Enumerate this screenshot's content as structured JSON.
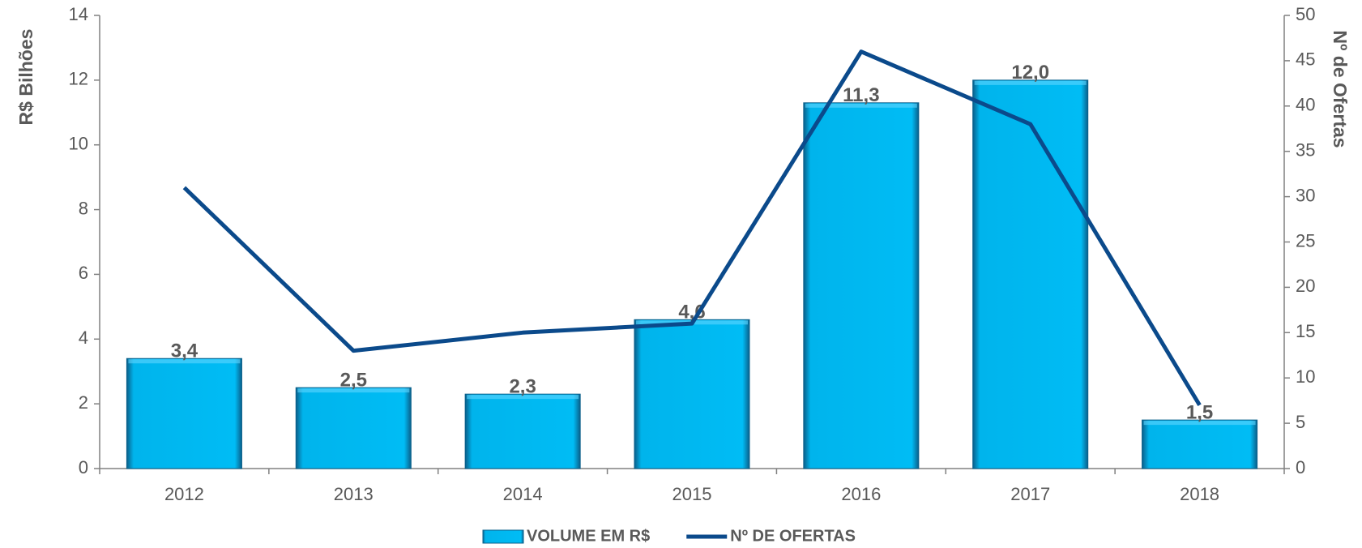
{
  "chart_data": {
    "type": "bar",
    "categories": [
      "2012",
      "2013",
      "2014",
      "2015",
      "2016",
      "2017",
      "2018"
    ],
    "series": [
      {
        "name": "VOLUME EM R$",
        "type": "bar",
        "color": "#00bcf5",
        "values": [
          3.4,
          2.5,
          2.3,
          4.6,
          11.3,
          12.0,
          1.5
        ],
        "value_labels": [
          "3,4",
          "2,5",
          "2,3",
          "4,6",
          "11,3",
          "12,0",
          "1,5"
        ]
      },
      {
        "name": "Nº DE OFERTAS",
        "type": "line",
        "axis": "y2",
        "color": "#0b4a8b",
        "values": [
          31,
          13,
          15,
          16,
          46,
          38,
          7
        ]
      }
    ],
    "ylabel": "R$ Bilhões",
    "y2label": "Nº de Ofertas",
    "ylim": [
      0,
      14
    ],
    "yticks": [
      0,
      2,
      4,
      6,
      8,
      10,
      12,
      14
    ],
    "y2lim": [
      0,
      50
    ],
    "y2ticks": [
      0,
      5,
      10,
      15,
      20,
      25,
      30,
      35,
      40,
      45,
      50
    ],
    "legend": "bottom"
  }
}
